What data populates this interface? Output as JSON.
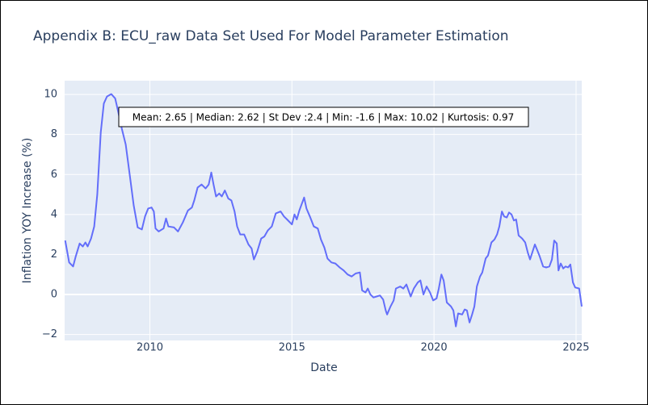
{
  "chart_data": {
    "type": "line",
    "title": "Appendix B: ECU_raw Data Set Used For Model Parameter Estimation",
    "x_label": "Date",
    "y_label": "Inflation YOY Increase (%)",
    "annotation": "Mean: 2.65 | Median: 2.62 | St Dev :2.4 | Min: -1.6 | Max: 10.02 | Kurtosis: 0.97",
    "xlim": [
      2007.0,
      2025.2
    ],
    "ylim": [
      -2.3,
      10.69
    ],
    "xticks": [
      2010,
      2015,
      2020,
      2025
    ],
    "yticks": [
      {
        "value": -2,
        "label": "−2"
      },
      0,
      2,
      4,
      6,
      8,
      10
    ],
    "grid": true,
    "series": [
      {
        "name": "ECU_raw",
        "color": "#636efa",
        "x": [
          2007.02,
          2007.16,
          2007.3,
          2007.39,
          2007.53,
          2007.64,
          2007.73,
          2007.81,
          2007.93,
          2008.04,
          2008.15,
          2008.27,
          2008.38,
          2008.49,
          2008.64,
          2008.78,
          2008.89,
          2009.01,
          2009.15,
          2009.29,
          2009.43,
          2009.57,
          2009.72,
          2009.83,
          2009.94,
          2010.06,
          2010.14,
          2010.2,
          2010.31,
          2010.48,
          2010.57,
          2010.65,
          2010.85,
          2010.99,
          2011.16,
          2011.34,
          2011.48,
          2011.56,
          2011.68,
          2011.82,
          2011.96,
          2012.07,
          2012.16,
          2012.24,
          2012.33,
          2012.44,
          2012.53,
          2012.64,
          2012.76,
          2012.87,
          2012.98,
          2013.07,
          2013.18,
          2013.32,
          2013.47,
          2013.58,
          2013.66,
          2013.78,
          2013.92,
          2014.03,
          2014.15,
          2014.29,
          2014.43,
          2014.6,
          2014.72,
          2014.83,
          2015.0,
          2015.09,
          2015.17,
          2015.26,
          2015.43,
          2015.51,
          2015.63,
          2015.77,
          2015.91,
          2016.02,
          2016.14,
          2016.25,
          2016.39,
          2016.53,
          2016.68,
          2016.82,
          2016.96,
          2017.1,
          2017.24,
          2017.39,
          2017.47,
          2017.59,
          2017.67,
          2017.76,
          2017.87,
          2017.98,
          2018.1,
          2018.21,
          2018.3,
          2018.35,
          2018.47,
          2018.58,
          2018.66,
          2018.81,
          2018.92,
          2019.03,
          2019.18,
          2019.29,
          2019.43,
          2019.52,
          2019.63,
          2019.74,
          2019.86,
          2019.97,
          2020.09,
          2020.17,
          2020.26,
          2020.34,
          2020.45,
          2020.6,
          2020.68,
          2020.77,
          2020.85,
          2020.99,
          2021.08,
          2021.16,
          2021.25,
          2021.34,
          2021.42,
          2021.51,
          2021.62,
          2021.7,
          2021.82,
          2021.9,
          2022.02,
          2022.13,
          2022.22,
          2022.3,
          2022.39,
          2022.47,
          2022.56,
          2022.64,
          2022.73,
          2022.81,
          2022.89,
          2022.98,
          2023.1,
          2023.21,
          2023.3,
          2023.38,
          2023.47,
          2023.55,
          2023.64,
          2023.72,
          2023.84,
          2023.95,
          2024.06,
          2024.15,
          2024.23,
          2024.32,
          2024.38,
          2024.46,
          2024.55,
          2024.63,
          2024.72,
          2024.8,
          2024.89,
          2024.97,
          2025.11,
          2025.2
        ],
        "values": [
          2.7,
          1.6,
          1.4,
          1.9,
          2.55,
          2.4,
          2.6,
          2.4,
          2.8,
          3.4,
          5.0,
          8.1,
          9.55,
          9.9,
          10.02,
          9.8,
          9.1,
          8.3,
          7.5,
          6.0,
          4.45,
          3.35,
          3.25,
          3.9,
          4.3,
          4.35,
          4.15,
          3.3,
          3.15,
          3.3,
          3.8,
          3.4,
          3.35,
          3.15,
          3.6,
          4.2,
          4.35,
          4.7,
          5.35,
          5.5,
          5.3,
          5.5,
          6.1,
          5.5,
          4.9,
          5.05,
          4.9,
          5.2,
          4.8,
          4.7,
          4.15,
          3.4,
          3.0,
          3.0,
          2.5,
          2.3,
          1.75,
          2.15,
          2.8,
          2.9,
          3.2,
          3.4,
          4.05,
          4.15,
          3.9,
          3.75,
          3.5,
          4.0,
          3.75,
          4.2,
          4.85,
          4.3,
          3.9,
          3.4,
          3.3,
          2.75,
          2.35,
          1.8,
          1.6,
          1.55,
          1.35,
          1.2,
          1.0,
          0.9,
          1.05,
          1.1,
          0.2,
          0.1,
          0.3,
          0.0,
          -0.15,
          -0.1,
          -0.05,
          -0.25,
          -0.8,
          -1.0,
          -0.6,
          -0.3,
          0.3,
          0.4,
          0.3,
          0.5,
          -0.1,
          0.3,
          0.6,
          0.7,
          0.0,
          0.4,
          0.1,
          -0.3,
          -0.2,
          0.3,
          1.0,
          0.7,
          -0.4,
          -0.6,
          -0.8,
          -1.6,
          -0.95,
          -1.0,
          -0.75,
          -0.8,
          -1.4,
          -1.0,
          -0.6,
          0.4,
          0.9,
          1.1,
          1.8,
          1.95,
          2.6,
          2.75,
          3.0,
          3.4,
          4.15,
          3.9,
          3.85,
          4.1,
          4.0,
          3.7,
          3.75,
          2.95,
          2.8,
          2.6,
          2.1,
          1.75,
          2.15,
          2.5,
          2.2,
          1.9,
          1.4,
          1.35,
          1.4,
          1.75,
          2.7,
          2.55,
          1.2,
          1.55,
          1.3,
          1.4,
          1.35,
          1.5,
          0.6,
          0.35,
          0.3,
          -0.6
        ]
      }
    ]
  }
}
